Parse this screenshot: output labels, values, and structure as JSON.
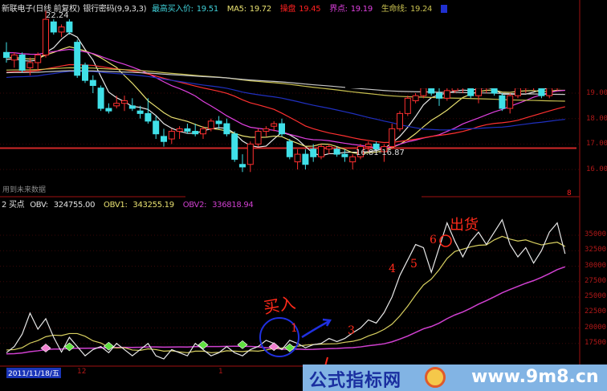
{
  "header": {
    "stock_name": "新联电子(日线 前复权)",
    "indicator": "银行密码(9,9,3,3)",
    "items": [
      {
        "label": "最高买入价:",
        "value": "19.51",
        "color": "#3fd0d8"
      },
      {
        "label": "MA5:",
        "value": "19.72",
        "color": "#e8e070"
      },
      {
        "label": "操盘",
        "value": "19.45",
        "color": "#ff2020"
      },
      {
        "label": "界点:",
        "value": "19.19",
        "color": "#e040e0"
      },
      {
        "label": "生命线:",
        "value": "19.24",
        "color": "#c8c050"
      }
    ],
    "tail_icon": "blue-square"
  },
  "price_panel": {
    "high_label": "22.24",
    "range_label": "16.81-16.87",
    "future_note": "用到未来数据",
    "support_level": 16.84,
    "corner_mark": "8"
  },
  "indicator_legend": {
    "name": "2 买点",
    "items": [
      {
        "label": "OBV:",
        "value": "324755.00",
        "color": "#e0e0e0"
      },
      {
        "label": "OBV1:",
        "value": "343255.19",
        "color": "#e8e070"
      },
      {
        "label": "OBV2:",
        "value": "336818.94",
        "color": "#d040d0"
      }
    ]
  },
  "date_bar": {
    "cursor_date": "2011/11/18/五",
    "ticks": [
      "12",
      "1"
    ]
  },
  "annotations": {
    "buy": "买入",
    "sell": "出货",
    "numbers": [
      "1",
      "3",
      "4",
      "5",
      "6"
    ]
  },
  "watermark": {
    "name": "公式指标网",
    "url": "www.9m8.cn"
  },
  "colors": {
    "up": "#ff3030",
    "down": "#40e0e8",
    "axis": "#b01818",
    "background": "#000000"
  },
  "chart_data": [
    {
      "type": "candlestick",
      "title": "",
      "yticks": [
        "19.00",
        "18.00",
        "17.00",
        "16.00"
      ],
      "ylim": [
        15.7,
        22.4
      ],
      "candles": [
        [
          20.6,
          21.0,
          20.2,
          20.4
        ],
        [
          20.3,
          20.6,
          20.0,
          20.5
        ],
        [
          20.5,
          20.6,
          19.8,
          19.9
        ],
        [
          20.0,
          20.4,
          19.7,
          20.2
        ],
        [
          20.2,
          20.6,
          19.9,
          20.5
        ],
        [
          20.5,
          22.24,
          20.4,
          21.9
        ],
        [
          21.8,
          21.9,
          21.3,
          21.4
        ],
        [
          21.4,
          21.7,
          21.2,
          21.6
        ],
        [
          21.8,
          21.9,
          21.3,
          21.4
        ],
        [
          21.0,
          21.1,
          19.6,
          19.7
        ],
        [
          20.1,
          20.2,
          19.4,
          19.5
        ],
        [
          19.5,
          19.7,
          19.0,
          19.3
        ],
        [
          19.2,
          19.3,
          18.3,
          18.4
        ],
        [
          18.4,
          18.6,
          18.2,
          18.3
        ],
        [
          18.5,
          18.9,
          18.4,
          18.6
        ],
        [
          18.6,
          18.9,
          18.3,
          18.7
        ],
        [
          18.5,
          18.8,
          18.3,
          18.4
        ],
        [
          18.3,
          18.5,
          18.0,
          18.2
        ],
        [
          18.2,
          18.8,
          17.8,
          17.9
        ],
        [
          17.9,
          18.1,
          17.2,
          17.4
        ],
        [
          17.3,
          17.6,
          16.9,
          17.1
        ],
        [
          17.2,
          17.6,
          17.0,
          17.5
        ],
        [
          17.5,
          17.7,
          17.2,
          17.6
        ],
        [
          17.6,
          17.8,
          17.4,
          17.5
        ],
        [
          17.5,
          17.8,
          17.3,
          17.4
        ],
        [
          17.4,
          17.7,
          17.2,
          17.6
        ],
        [
          17.6,
          18.0,
          17.5,
          17.9
        ],
        [
          17.9,
          18.1,
          17.6,
          17.8
        ],
        [
          17.8,
          18.0,
          17.3,
          17.4
        ],
        [
          17.4,
          17.5,
          16.3,
          16.4
        ],
        [
          16.2,
          16.6,
          15.9,
          16.1
        ],
        [
          16.2,
          17.1,
          15.9,
          17.0
        ],
        [
          17.0,
          17.6,
          16.9,
          17.5
        ],
        [
          17.5,
          17.7,
          17.3,
          17.6
        ],
        [
          17.7,
          17.9,
          17.5,
          17.8
        ],
        [
          17.8,
          18.0,
          17.3,
          17.4
        ],
        [
          17.1,
          17.2,
          16.4,
          16.5
        ],
        [
          16.3,
          16.8,
          16.0,
          16.6
        ],
        [
          16.6,
          16.8,
          16.0,
          16.2
        ],
        [
          16.8,
          17.0,
          16.3,
          16.5
        ],
        [
          16.5,
          17.0,
          16.4,
          16.9
        ],
        [
          16.8,
          17.0,
          16.6,
          16.9
        ],
        [
          16.8,
          16.9,
          16.5,
          16.6
        ],
        [
          16.6,
          16.8,
          16.3,
          16.5
        ],
        [
          16.3,
          16.6,
          16.0,
          16.5
        ],
        [
          16.5,
          17.0,
          16.4,
          16.9
        ],
        [
          16.9,
          17.1,
          16.7,
          17.0
        ],
        [
          17.0,
          17.1,
          16.7,
          16.8
        ],
        [
          16.7,
          17.0,
          16.3,
          16.9
        ],
        [
          16.9,
          17.8,
          16.8,
          17.6
        ],
        [
          17.6,
          18.3,
          17.5,
          18.2
        ],
        [
          18.2,
          18.9,
          18.1,
          18.8
        ],
        [
          18.7,
          19.0,
          18.6,
          18.9
        ],
        [
          18.9,
          19.3,
          18.8,
          19.2
        ],
        [
          19.2,
          19.5,
          18.9,
          19.0
        ],
        [
          19.0,
          19.3,
          18.5,
          18.8
        ],
        [
          18.8,
          19.2,
          18.7,
          19.1
        ],
        [
          19.1,
          19.4,
          19.0,
          19.3
        ],
        [
          19.3,
          19.6,
          19.0,
          19.4
        ],
        [
          19.4,
          19.5,
          18.8,
          18.9
        ],
        [
          18.9,
          19.3,
          18.6,
          19.2
        ],
        [
          19.2,
          19.5,
          19.0,
          19.3
        ],
        [
          19.3,
          19.4,
          18.9,
          19.0
        ],
        [
          18.9,
          19.0,
          18.3,
          18.4
        ],
        [
          18.4,
          19.0,
          18.2,
          18.9
        ],
        [
          18.9,
          19.3,
          18.8,
          19.2
        ],
        [
          19.2,
          19.4,
          19.0,
          19.3
        ],
        [
          19.3,
          19.5,
          19.1,
          19.4
        ],
        [
          19.4,
          19.6,
          18.8,
          18.9
        ],
        [
          18.9,
          19.3,
          18.8,
          19.2
        ],
        [
          19.2,
          19.6,
          19.1,
          19.5
        ],
        [
          19.5,
          19.6,
          19.2,
          19.3
        ]
      ]
    },
    {
      "type": "line",
      "title": "",
      "yticks": [
        "35000",
        "32500",
        "30000",
        "27500",
        "25000",
        "22500",
        "20000",
        "17500"
      ],
      "ylim": [
        14500,
        39000
      ],
      "series": [
        {
          "name": "OBV",
          "values": [
            16000,
            17000,
            19000,
            22400,
            19800,
            21500,
            18500,
            16100,
            18500,
            17000,
            15500,
            16500,
            17000,
            16000,
            17500,
            16500,
            15500,
            16500,
            17500,
            15500,
            15000,
            16500,
            16000,
            15500,
            17500,
            16500,
            15500,
            16000,
            17000,
            16000,
            15500,
            16500,
            17000,
            18000,
            17500,
            16500,
            18000,
            17500,
            16800,
            17300,
            17500,
            18300,
            17800,
            18300,
            19200,
            20000,
            21300,
            20800,
            22500,
            25000,
            28500,
            31000,
            33500,
            33000,
            29000,
            33000,
            37000,
            34000,
            31500,
            34000,
            35500,
            33500,
            35500,
            37500,
            33500,
            31500,
            33000,
            30500,
            32500,
            35500,
            37000,
            32000
          ]
        },
        {
          "name": "OBV1"
        },
        {
          "name": "OBV2"
        }
      ],
      "buy_signals_pink": [
        5,
        34
      ],
      "buy_signals_green": [
        8,
        13,
        25,
        30,
        36
      ]
    }
  ]
}
